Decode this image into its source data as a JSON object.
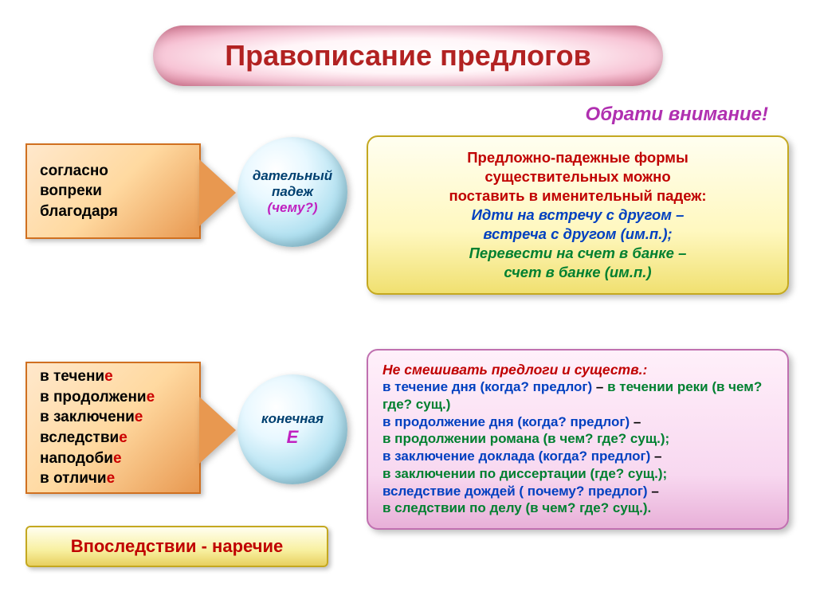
{
  "title": "Правописание предлогов",
  "attention": "Обрати внимание!",
  "arrow1": {
    "lines": [
      "согласно",
      "вопреки",
      "благодаря"
    ]
  },
  "sphere1": {
    "line1": "дательный падеж",
    "line2": "(чему?)"
  },
  "info1": {
    "title_lines": [
      "Предложно-падежные формы",
      "существительных можно",
      "поставить в именительный падеж:"
    ],
    "ex1a": "Идти на встречу с другом –",
    "ex1b": "встреча с другом (им.п.);",
    "ex2a": "Перевести на счет в банке –",
    "ex2b": "счет в банке (им.п.)"
  },
  "arrow2": {
    "items": [
      {
        "base": "в течени",
        "suffix": "е"
      },
      {
        "base": "в продолжени",
        "suffix": "е"
      },
      {
        "base": "в заключени",
        "suffix": "е"
      },
      {
        "base": "вследстви",
        "suffix": "е"
      },
      {
        "base": "наподоби",
        "suffix": "е"
      },
      {
        "base": "в отличи",
        "suffix": "е"
      }
    ]
  },
  "sphere2": {
    "line1": "конечная",
    "line2": "Е"
  },
  "info2": {
    "title": "Не смешивать предлоги и существ.:",
    "rows": [
      {
        "blue": "в течение дня (когда? предлог)",
        "sep": " – ",
        "green": "в течении реки (в чем? где? сущ.)"
      },
      {
        "blue": "в продолжение дня (когда? предлог)",
        "sep": " – ",
        "green": ""
      },
      {
        "blue": "",
        "sep": "",
        "green": "в продолжении романа (в чем? где? сущ.);"
      },
      {
        "blue": "в заключение доклада (когда? предлог)",
        "sep": " – ",
        "green": ""
      },
      {
        "blue": "",
        "sep": "",
        "green": "в заключении по диссертации (где? сущ.);"
      },
      {
        "blue": "вследствие дождей ( почему? предлог)",
        "sep": " – ",
        "green": ""
      },
      {
        "blue": "",
        "sep": "",
        "green": "в следствии по делу (в чем? где? сущ.)."
      }
    ]
  },
  "adverb": "Впоследствии - наречие",
  "colors": {
    "title_text": "#b22222",
    "attention": "#b030b0",
    "red": "#c00000",
    "blue": "#0040c0",
    "green": "#008030",
    "magenta": "#c020c0",
    "sphere_text": "#004070"
  }
}
